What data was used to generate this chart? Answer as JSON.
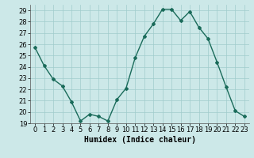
{
  "x": [
    0,
    1,
    2,
    3,
    4,
    5,
    6,
    7,
    8,
    9,
    10,
    11,
    12,
    13,
    14,
    15,
    16,
    17,
    18,
    19,
    20,
    21,
    22,
    23
  ],
  "y": [
    25.7,
    24.1,
    22.9,
    22.3,
    20.9,
    19.2,
    19.8,
    19.6,
    19.2,
    21.1,
    22.1,
    24.8,
    26.7,
    27.8,
    29.1,
    29.1,
    28.1,
    28.9,
    27.5,
    26.5,
    24.4,
    22.2,
    20.1,
    19.6
  ],
  "xlim": [
    -0.5,
    23.5
  ],
  "ylim": [
    19,
    29.5
  ],
  "yticks": [
    19,
    20,
    21,
    22,
    23,
    24,
    25,
    26,
    27,
    28,
    29
  ],
  "xticks": [
    0,
    1,
    2,
    3,
    4,
    5,
    6,
    7,
    8,
    9,
    10,
    11,
    12,
    13,
    14,
    15,
    16,
    17,
    18,
    19,
    20,
    21,
    22,
    23
  ],
  "xlabel": "Humidex (Indice chaleur)",
  "line_color": "#1a6b5a",
  "marker": "D",
  "marker_size": 2,
  "bg_color": "#cce8e8",
  "grid_color": "#a0cccc",
  "axis_bg": "#cce8e8",
  "xlabel_fontsize": 7,
  "tick_fontsize": 6,
  "line_width": 1.0
}
